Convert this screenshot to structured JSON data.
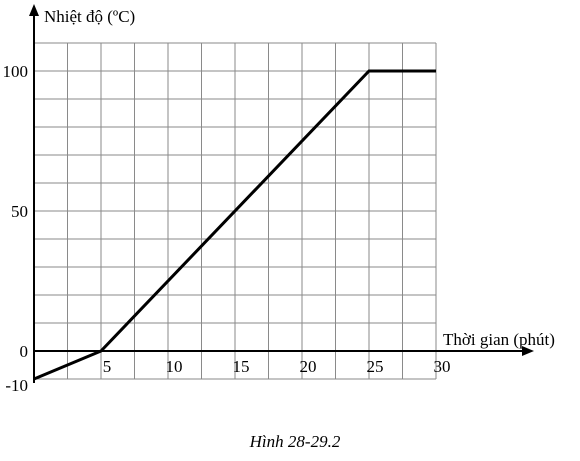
{
  "chart_data": {
    "type": "line",
    "xlabel": "Thời gian (phút)",
    "ylabel": "Nhiệt độ (ºC)",
    "x_ticks": [
      "5",
      "10",
      "15",
      "20",
      "25",
      "30"
    ],
    "y_ticks": [
      "100",
      "50",
      "0",
      "-10"
    ],
    "xlim": [
      0,
      30
    ],
    "ylim": [
      -10,
      110
    ],
    "grid": true,
    "series": [
      {
        "x": [
          0,
          5,
          25,
          30
        ],
        "y": [
          -10,
          0,
          100,
          100
        ]
      }
    ]
  },
  "caption": "Hình 28-29.2"
}
